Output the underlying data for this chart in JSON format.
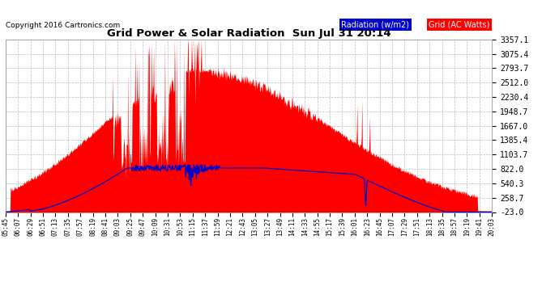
{
  "title": "Grid Power & Solar Radiation  Sun Jul 31 20:14",
  "copyright": "Copyright 2016 Cartronics.com",
  "legend_radiation": "Radiation (w/m2)",
  "legend_grid": "Grid (AC Watts)",
  "bg_color": "#ffffff",
  "plot_bg_color": "#ffffff",
  "grid_color": "#bbbbbb",
  "radiation_color": "#ff0000",
  "grid_line_color": "#0000cc",
  "yticks": [
    -23.0,
    258.7,
    540.3,
    822.0,
    1103.7,
    1385.4,
    1667.0,
    1948.7,
    2230.4,
    2512.0,
    2793.7,
    3075.4,
    3357.1
  ],
  "ymin": -23.0,
  "ymax": 3357.1,
  "x_labels": [
    "05:45",
    "06:07",
    "06:29",
    "06:51",
    "07:13",
    "07:35",
    "07:57",
    "08:19",
    "08:41",
    "09:03",
    "09:25",
    "09:47",
    "10:09",
    "10:31",
    "10:53",
    "11:15",
    "11:37",
    "11:59",
    "12:21",
    "12:43",
    "13:05",
    "13:27",
    "13:49",
    "14:11",
    "14:33",
    "14:55",
    "15:17",
    "15:39",
    "16:01",
    "16:23",
    "16:45",
    "17:07",
    "17:29",
    "17:51",
    "18:13",
    "18:35",
    "18:57",
    "19:19",
    "19:41",
    "20:03"
  ]
}
